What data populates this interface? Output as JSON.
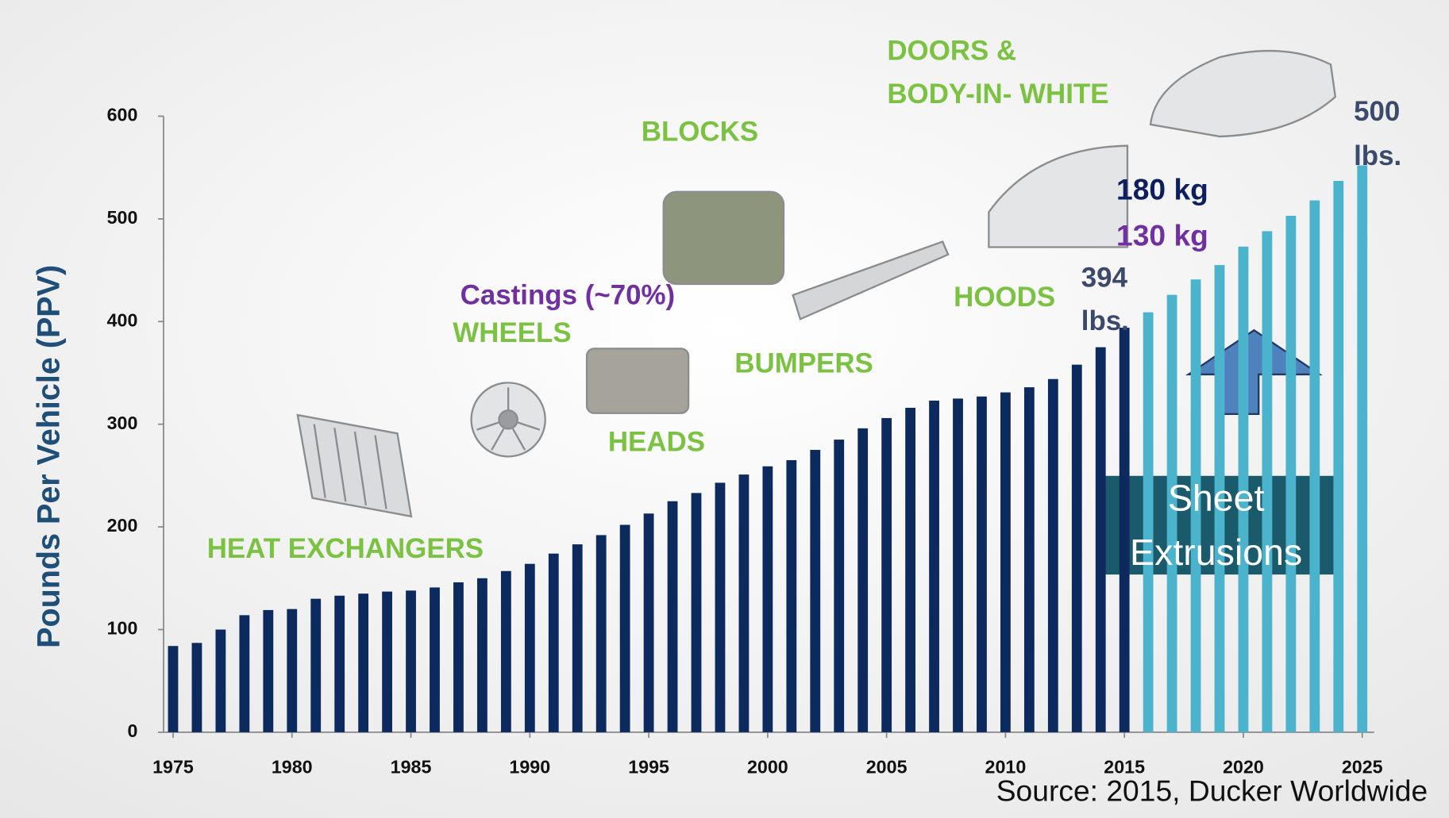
{
  "chart_data": {
    "type": "bar",
    "y_label": "Pounds Per Vehicle (PPV)",
    "x": [
      1975,
      1976,
      1977,
      1978,
      1979,
      1980,
      1981,
      1982,
      1983,
      1984,
      1985,
      1986,
      1987,
      1988,
      1989,
      1990,
      1991,
      1992,
      1993,
      1994,
      1995,
      1996,
      1997,
      1998,
      1999,
      2000,
      2001,
      2002,
      2003,
      2004,
      2005,
      2006,
      2007,
      2008,
      2009,
      2010,
      2011,
      2012,
      2013,
      2014,
      2015,
      2016,
      2017,
      2018,
      2019,
      2020,
      2021,
      2022,
      2023,
      2024,
      2025
    ],
    "values": [
      84,
      87,
      100,
      114,
      119,
      120,
      130,
      133,
      135,
      137,
      138,
      141,
      146,
      150,
      157,
      164,
      174,
      183,
      192,
      202,
      213,
      225,
      233,
      243,
      251,
      259,
      265,
      275,
      285,
      296,
      306,
      316,
      323,
      325,
      327,
      331,
      336,
      344,
      358,
      375,
      394,
      409,
      426,
      441,
      455,
      473,
      488,
      503,
      518,
      537,
      552
    ],
    "colors": [
      "#0d2a5e",
      "#0d2a5e",
      "#0d2a5e",
      "#0d2a5e",
      "#0d2a5e",
      "#0d2a5e",
      "#0d2a5e",
      "#0d2a5e",
      "#0d2a5e",
      "#0d2a5e",
      "#0d2a5e",
      "#0d2a5e",
      "#0d2a5e",
      "#0d2a5e",
      "#0d2a5e",
      "#0d2a5e",
      "#0d2a5e",
      "#0d2a5e",
      "#0d2a5e",
      "#0d2a5e",
      "#0d2a5e",
      "#0d2a5e",
      "#0d2a5e",
      "#0d2a5e",
      "#0d2a5e",
      "#0d2a5e",
      "#0d2a5e",
      "#0d2a5e",
      "#0d2a5e",
      "#0d2a5e",
      "#0d2a5e",
      "#0d2a5e",
      "#0d2a5e",
      "#0d2a5e",
      "#0d2a5e",
      "#0d2a5e",
      "#0d2a5e",
      "#0d2a5e",
      "#0d2a5e",
      "#0d2a5e",
      "#0d2a5e",
      "#4bb3cc",
      "#4bb3cc",
      "#4bb3cc",
      "#4bb3cc",
      "#4bb3cc",
      "#4bb3cc",
      "#4bb3cc",
      "#4bb3cc",
      "#4bb3cc",
      "#4bb3cc"
    ],
    "xlim": [
      1974.6,
      2025.5
    ],
    "xticks": [
      1975,
      1980,
      1985,
      1990,
      1995,
      2000,
      2005,
      2010,
      2015,
      2020,
      2025
    ],
    "ylim": [
      0,
      600
    ],
    "yticks": [
      0,
      100,
      200,
      300,
      400,
      500,
      600
    ],
    "grid": false,
    "annotations": [
      {
        "text": "HEAT EXCHANGERS",
        "color": "#7cc242"
      },
      {
        "text": "WHEELS",
        "color": "#7cc242"
      },
      {
        "text": "Castings (~70%)",
        "color": "#7030a0"
      },
      {
        "text": "HEADS",
        "color": "#7cc242"
      },
      {
        "text": "BLOCKS",
        "color": "#7cc242"
      },
      {
        "text": "BUMPERS",
        "color": "#7cc242"
      },
      {
        "text": "HOODS",
        "color": "#7cc242"
      },
      {
        "text": "DOORS &",
        "color": "#7cc242"
      },
      {
        "text": "BODY-IN- WHITE",
        "color": "#7cc242"
      },
      {
        "text": "394",
        "color": "#3b4a6b"
      },
      {
        "text": "lbs.",
        "color": "#3b4a6b"
      },
      {
        "text": "500",
        "color": "#3b4a6b"
      },
      {
        "text": "lbs.",
        "color": "#3b4a6b"
      },
      {
        "text": "180 kg",
        "color": "#0d1f5c"
      },
      {
        "text": "130 kg",
        "color": "#7030a0"
      },
      {
        "text": "Sheet",
        "color": "#ffffff"
      },
      {
        "text": "Extrusions",
        "color": "#ffffff"
      }
    ],
    "source": "Source:  2015, Ducker Worldwide"
  }
}
